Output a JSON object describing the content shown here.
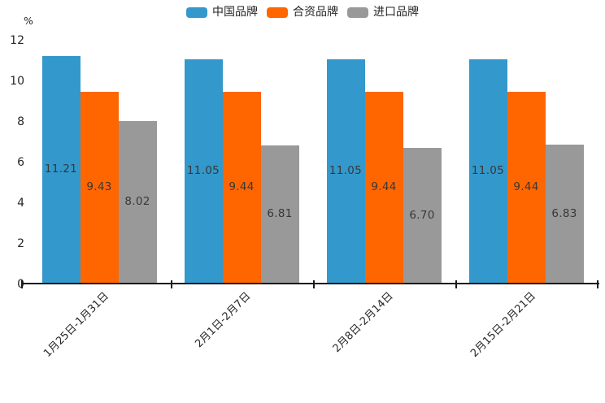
{
  "chart_data": {
    "type": "bar",
    "title": "",
    "unit": "%",
    "ylabel": "%",
    "xlabel": "",
    "categories": [
      "1月25日-1月31日",
      "2月1日-2月7日",
      "2月8日-2月14日",
      "2月15日-2月21日"
    ],
    "series": [
      {
        "name": "中国品牌",
        "color": "#3398CB",
        "values": [
          11.21,
          11.05,
          11.05,
          11.05
        ]
      },
      {
        "name": "合资品牌",
        "color": "#FF6600",
        "values": [
          9.43,
          9.44,
          9.44,
          9.44
        ]
      },
      {
        "name": "进口品牌",
        "color": "#999999",
        "values": [
          8.02,
          6.81,
          6.7,
          6.83
        ]
      }
    ],
    "yticks": [
      0,
      2,
      4,
      6,
      8,
      10,
      12
    ],
    "ylim": [
      0,
      12
    ],
    "grid": false,
    "legend_position": "top-center",
    "value_labels": "inside-center",
    "value_label_decimals": 2,
    "axis_color": "#1a1a1a"
  }
}
